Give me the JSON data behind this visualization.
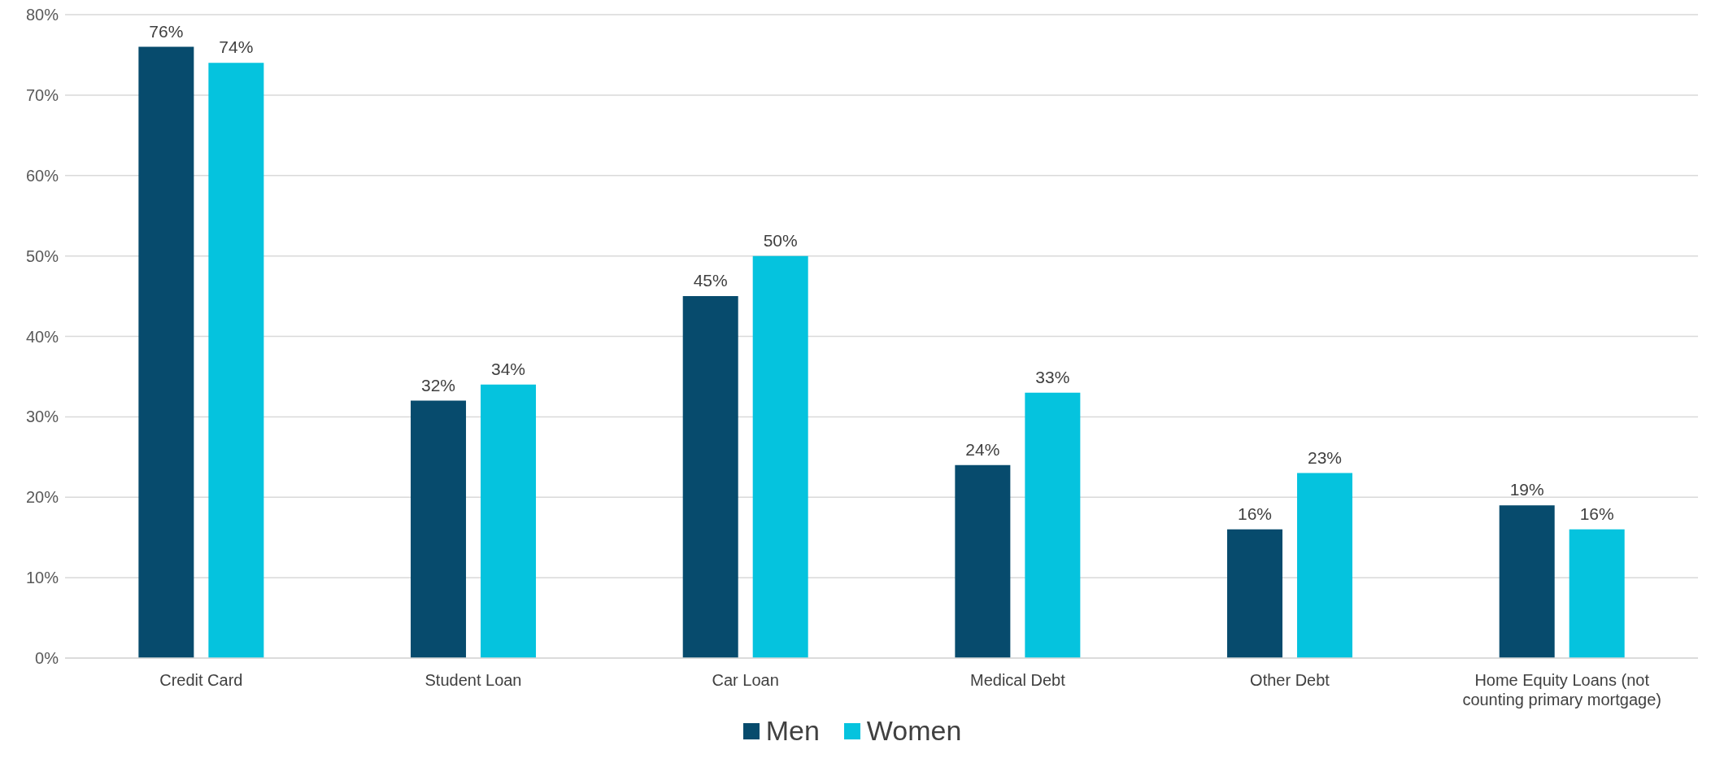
{
  "chart_data": {
    "type": "bar",
    "categories": [
      "Credit Card",
      "Student Loan",
      "Car Loan",
      "Medical Debt",
      "Other Debt",
      "Home Equity Loans (not counting primary mortgage)"
    ],
    "series": [
      {
        "name": "Men",
        "color": "#074b6d",
        "values": [
          76,
          32,
          45,
          24,
          16,
          19
        ],
        "value_labels": [
          "76%",
          "32%",
          "45%",
          "24%",
          "16%",
          "19%"
        ]
      },
      {
        "name": "Women",
        "color": "#05c3de",
        "values": [
          74,
          34,
          50,
          33,
          23,
          16
        ],
        "value_labels": [
          "74%",
          "34%",
          "50%",
          "33%",
          "23%",
          "16%"
        ]
      }
    ],
    "ylim": [
      0,
      80
    ],
    "yticks": [
      {
        "value": 0,
        "label": "0%"
      },
      {
        "value": 10,
        "label": "10%"
      },
      {
        "value": 20,
        "label": "20%"
      },
      {
        "value": 30,
        "label": "30%"
      },
      {
        "value": 40,
        "label": "40%"
      },
      {
        "value": 50,
        "label": "50%"
      },
      {
        "value": 60,
        "label": "60%"
      },
      {
        "value": 70,
        "label": "70%"
      },
      {
        "value": 80,
        "label": "80%"
      }
    ],
    "grid": "y",
    "legend": "bottom"
  }
}
